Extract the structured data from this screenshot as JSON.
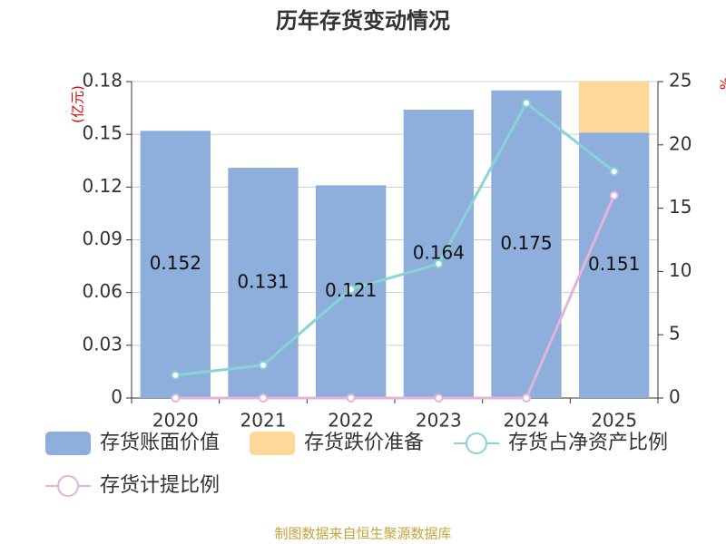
{
  "chart_data": {
    "type": "bar",
    "title": "历年存货变动情况",
    "ylabel": "(亿元)",
    "y2label": "%",
    "source": "制图数据来自恒生聚源数据库",
    "categories": [
      "2020",
      "2021",
      "2022",
      "2023",
      "2024",
      "2025"
    ],
    "series": [
      {
        "name": "存货账面价值",
        "color": "#8eaedb",
        "type": "bar",
        "values": [
          0.152,
          0.131,
          0.121,
          0.164,
          0.175,
          0.151
        ]
      },
      {
        "name": "存货跌价准备",
        "color": "#fdd899",
        "type": "bar",
        "values": [
          0,
          0,
          0,
          0,
          0,
          0.029
        ]
      },
      {
        "name": "存货占净资产比例",
        "color": "#86d4d6",
        "type": "line",
        "axis": "y2",
        "values": [
          1.8,
          2.6,
          8.6,
          10.6,
          23.3,
          17.9
        ]
      },
      {
        "name": "存货计提比例",
        "color": "#e2b4dc",
        "type": "line",
        "axis": "y2",
        "values": [
          0,
          0,
          0,
          0,
          0,
          16.0
        ]
      }
    ],
    "ylim": [
      0,
      0.18
    ],
    "yticks": [
      0,
      0.03,
      0.06,
      0.09,
      0.12,
      0.15,
      0.18
    ],
    "y2lim": [
      0,
      25
    ],
    "y2ticks": [
      0,
      5,
      10,
      15,
      20,
      25
    ],
    "grid": true
  }
}
